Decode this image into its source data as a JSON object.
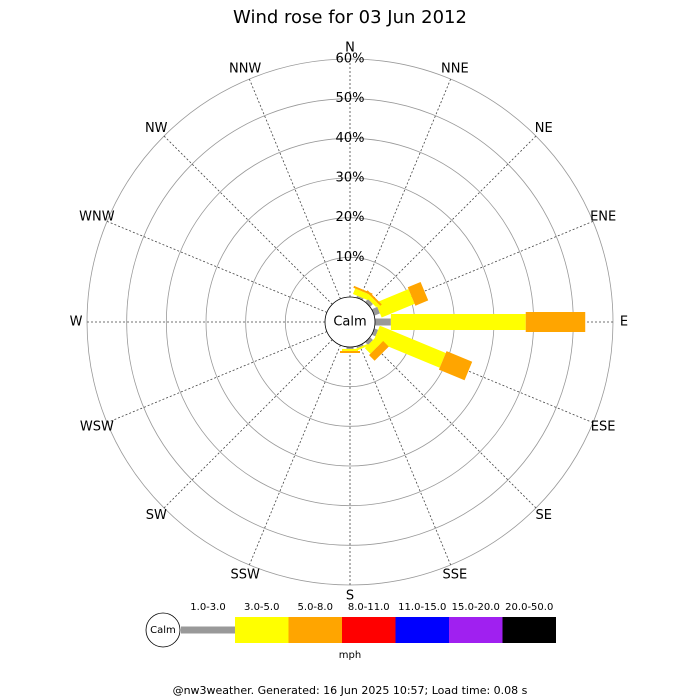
{
  "chart_data": {
    "type": "windrose",
    "title": "Wind rose for 03 Jun 2012",
    "categories": [
      "N",
      "NNE",
      "NE",
      "ENE",
      "E",
      "ESE",
      "SE",
      "SSE",
      "S",
      "SSW",
      "SW",
      "WSW",
      "W",
      "WNW",
      "NW",
      "NNW"
    ],
    "calm_label": "Calm",
    "legend_unit": "mph",
    "footer": "@nw3weather. Generated: 16 Jun 2025 10:57; Load time: 0.08 s",
    "rlim": [
      0,
      60
    ],
    "rticks": [
      {
        "value": 10,
        "label": "10%"
      },
      {
        "value": 20,
        "label": "20%"
      },
      {
        "value": 30,
        "label": "30%"
      },
      {
        "value": 40,
        "label": "40%"
      },
      {
        "value": 50,
        "label": "50%"
      },
      {
        "value": 60,
        "label": "60%"
      }
    ],
    "series": [
      {
        "name": "1.0-3.0",
        "color": "#999999",
        "values": [
          0,
          0.5,
          1,
          1.5,
          4,
          1,
          1,
          0.5,
          0.5,
          0,
          0,
          0,
          0,
          0,
          0,
          0
        ]
      },
      {
        "name": "3.0-5.0",
        "color": "#ffff00",
        "values": [
          0,
          1.5,
          1,
          9,
          34,
          18,
          2,
          0.5,
          0.5,
          0,
          0,
          0,
          0,
          0,
          0,
          0
        ]
      },
      {
        "name": "5.0-8.0",
        "color": "#ffa500",
        "values": [
          0,
          0.5,
          0.5,
          3.5,
          15,
          7,
          2,
          0,
          0.5,
          0,
          0,
          0,
          0,
          0,
          0,
          0
        ]
      },
      {
        "name": "8.0-11.0",
        "color": "#ff0000",
        "values": [
          0,
          0,
          0,
          0,
          0,
          0,
          0,
          0,
          0,
          0,
          0,
          0,
          0,
          0,
          0,
          0
        ]
      },
      {
        "name": "11.0-15.0",
        "color": "#0000ff",
        "values": [
          0,
          0,
          0,
          0,
          0,
          0,
          0,
          0,
          0,
          0,
          0,
          0,
          0,
          0,
          0,
          0
        ]
      },
      {
        "name": "15.0-20.0",
        "color": "#a020f0",
        "values": [
          0,
          0,
          0,
          0,
          0,
          0,
          0,
          0,
          0,
          0,
          0,
          0,
          0,
          0,
          0,
          0
        ]
      },
      {
        "name": "20.0-50.0",
        "color": "#000000",
        "values": [
          0,
          0,
          0,
          0,
          0,
          0,
          0,
          0,
          0,
          0,
          0,
          0,
          0,
          0,
          0,
          0
        ]
      }
    ]
  }
}
